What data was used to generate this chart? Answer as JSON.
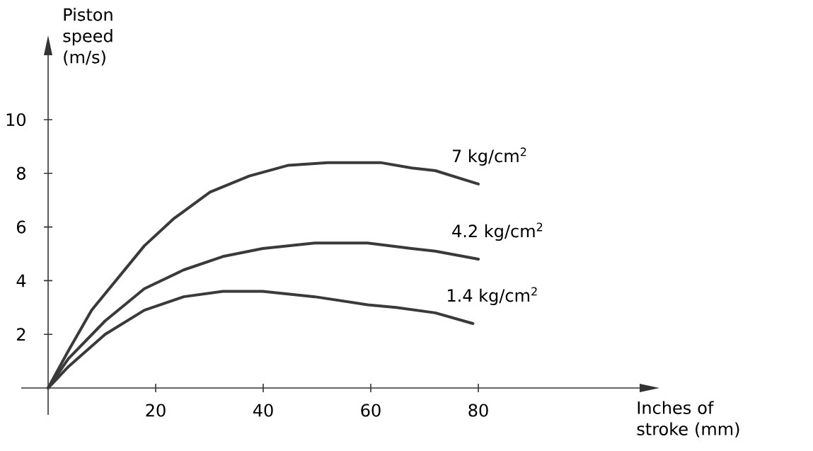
{
  "chart_data": {
    "type": "line",
    "xlabel": "Inches of stroke (mm)",
    "ylabel": "Piston speed (m/s)",
    "xlim": [
      -5,
      110
    ],
    "ylim": [
      -1,
      12.4
    ],
    "xticks": [
      20,
      40,
      60,
      80
    ],
    "yticks": [
      2,
      4,
      6,
      8,
      10
    ],
    "series": [
      {
        "name": "7 kg/cm$^{2}$",
        "color": "#3a3a3a",
        "x": [
          0,
          3.8,
          8.1,
          13,
          17.9,
          23.3,
          30.1,
          37.4,
          44.7,
          52,
          56.9,
          61.8,
          67.6,
          72,
          80
        ],
        "values": [
          0,
          1.4,
          2.9,
          4.1,
          5.3,
          6.3,
          7.3,
          7.9,
          8.3,
          8.4,
          8.4,
          8.4,
          8.2,
          8.1,
          7.6
        ]
      },
      {
        "name": "4.2 kg/cm$^{2}$",
        "color": "#3a3a3a",
        "x": [
          0,
          3.8,
          10.6,
          17.9,
          25.2,
          32.5,
          39.9,
          49.6,
          59.4,
          67.6,
          72,
          80
        ],
        "values": [
          0,
          1.1,
          2.5,
          3.7,
          4.4,
          4.9,
          5.2,
          5.4,
          5.4,
          5.2,
          5.1,
          4.8
        ]
      },
      {
        "name": "1.4 kg/cm$^{2}$",
        "color": "#3a3a3a",
        "x": [
          0,
          3.8,
          10.6,
          17.9,
          25.2,
          32.5,
          39.9,
          49.6,
          59.4,
          64.7,
          72,
          79
        ],
        "values": [
          0,
          0.8,
          2.0,
          2.9,
          3.4,
          3.6,
          3.6,
          3.4,
          3.1,
          3.0,
          2.8,
          2.4
        ]
      }
    ]
  }
}
